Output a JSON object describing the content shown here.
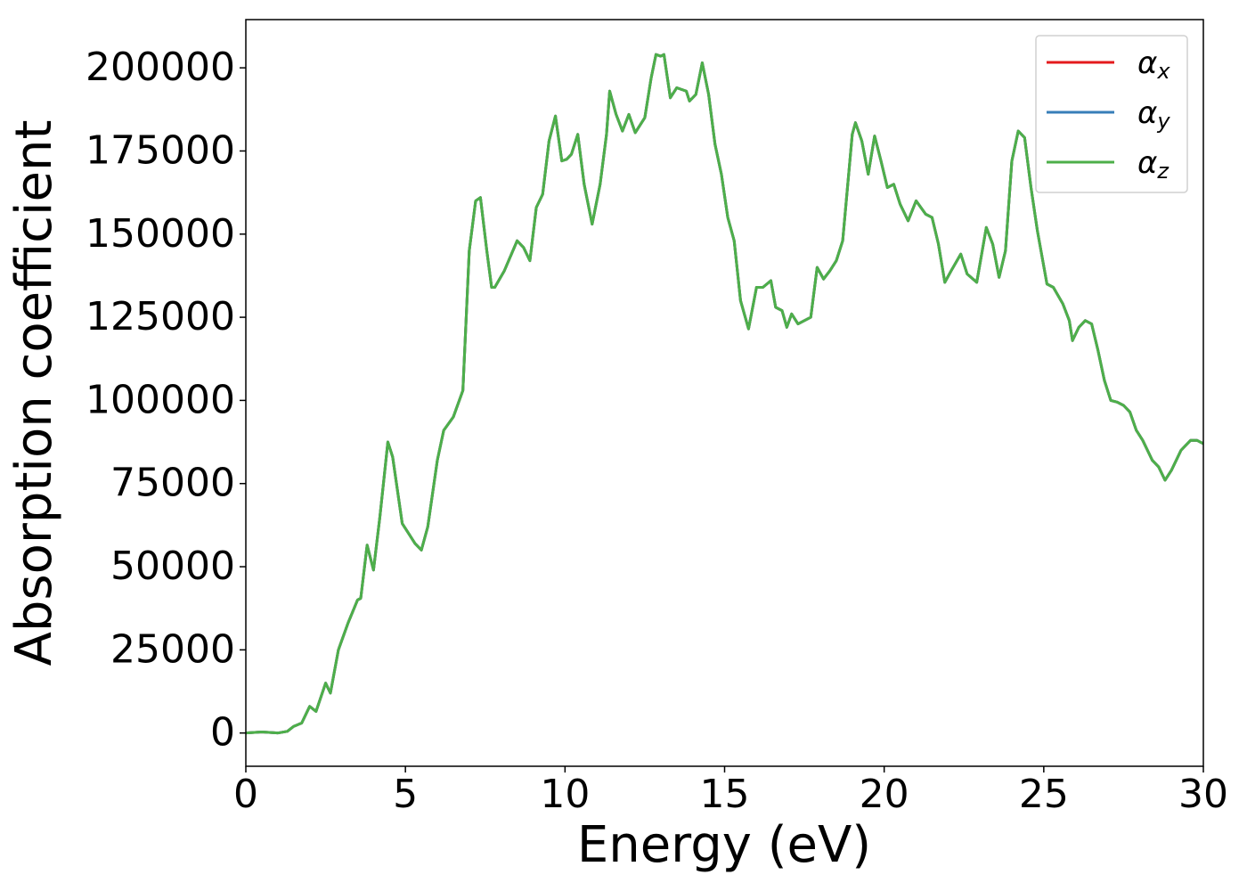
{
  "chart_data": {
    "type": "line",
    "xlabel": "Energy (eV)",
    "ylabel": "Absorption coefficient",
    "x": [
      0,
      0.5,
      1,
      1.3,
      1.5,
      1.75,
      2.0,
      2.2,
      2.5,
      2.65,
      2.9,
      3.2,
      3.5,
      3.6,
      3.8,
      4.0,
      4.2,
      4.45,
      4.6,
      4.9,
      5.1,
      5.3,
      5.5,
      5.7,
      6.0,
      6.2,
      6.5,
      6.8,
      7.0,
      7.2,
      7.35,
      7.55,
      7.7,
      7.8,
      8.1,
      8.5,
      8.7,
      8.9,
      9.1,
      9.3,
      9.5,
      9.7,
      9.9,
      10.05,
      10.2,
      10.4,
      10.6,
      10.85,
      11.1,
      11.3,
      11.4,
      11.6,
      11.8,
      12.0,
      12.2,
      12.5,
      12.7,
      12.85,
      13.0,
      13.1,
      13.3,
      13.5,
      13.8,
      13.9,
      14.1,
      14.3,
      14.5,
      14.7,
      14.9,
      15.1,
      15.3,
      15.5,
      15.75,
      16.0,
      16.2,
      16.45,
      16.6,
      16.8,
      16.95,
      17.1,
      17.3,
      17.5,
      17.7,
      17.9,
      18.1,
      18.3,
      18.5,
      18.7,
      19.0,
      19.1,
      19.3,
      19.5,
      19.7,
      19.9,
      20.1,
      20.3,
      20.5,
      20.75,
      21.0,
      21.3,
      21.5,
      21.7,
      21.9,
      22.1,
      22.4,
      22.6,
      22.9,
      23.2,
      23.4,
      23.6,
      23.8,
      24.0,
      24.2,
      24.4,
      24.6,
      24.8,
      25.1,
      25.3,
      25.6,
      25.8,
      25.9,
      26.1,
      26.3,
      26.5,
      26.7,
      26.9,
      27.1,
      27.3,
      27.5,
      27.7,
      27.9,
      28.1,
      28.4,
      28.6,
      28.8,
      29.0,
      29.3,
      29.6,
      29.8,
      30.0
    ],
    "series": [
      {
        "name": "αx",
        "color": "#e41a1c",
        "values": [
          0,
          300,
          0,
          500,
          2000,
          3000,
          8000,
          6500,
          15000,
          12000,
          25000,
          33000,
          40000,
          40500,
          56500,
          49000,
          65000,
          87500,
          83000,
          63000,
          60000,
          57000,
          55000,
          62000,
          82000,
          91000,
          95000,
          103000,
          145000,
          160000,
          161000,
          145000,
          134000,
          134000,
          139000,
          148000,
          146000,
          142000,
          158000,
          162000,
          178000,
          185500,
          172000,
          172500,
          174000,
          180000,
          165000,
          153000,
          165000,
          180000,
          193000,
          186000,
          181000,
          186000,
          180500,
          185000,
          197000,
          204000,
          203500,
          204000,
          191000,
          194000,
          193000,
          190000,
          192000,
          201500,
          192000,
          177000,
          168000,
          155000,
          148000,
          130000,
          121500,
          134000,
          134000,
          136000,
          128000,
          127000,
          122000,
          126000,
          123000,
          124000,
          125000,
          140000,
          136500,
          139000,
          142000,
          148000,
          180000,
          183500,
          178000,
          168000,
          179500,
          172000,
          164000,
          165000,
          159000,
          154000,
          160000,
          156000,
          155000,
          147000,
          135500,
          139000,
          144000,
          138000,
          135500,
          152000,
          147000,
          137000,
          145000,
          172000,
          181000,
          179000,
          164000,
          151000,
          135000,
          134000,
          129000,
          124000,
          118000,
          122000,
          124000,
          123000,
          115000,
          106000,
          100000,
          99500,
          98500,
          96500,
          91000,
          88000,
          82000,
          80000,
          76000,
          79000,
          85000,
          88000,
          88000,
          87000
        ]
      },
      {
        "name": "αy",
        "color": "#377eb8",
        "values": [
          0,
          300,
          0,
          500,
          2000,
          3000,
          8000,
          6500,
          15000,
          12000,
          25000,
          33000,
          40000,
          40500,
          56500,
          49000,
          65000,
          87500,
          83000,
          63000,
          60000,
          57000,
          55000,
          62000,
          82000,
          91000,
          95000,
          103000,
          145000,
          160000,
          161000,
          145000,
          134000,
          134000,
          139000,
          148000,
          146000,
          142000,
          158000,
          162000,
          178000,
          185500,
          172000,
          172500,
          174000,
          180000,
          165000,
          153000,
          165000,
          180000,
          193000,
          186000,
          181000,
          186000,
          180500,
          185000,
          197000,
          204000,
          203500,
          204000,
          191000,
          194000,
          193000,
          190000,
          192000,
          201500,
          192000,
          177000,
          168000,
          155000,
          148000,
          130000,
          121500,
          134000,
          134000,
          136000,
          128000,
          127000,
          122000,
          126000,
          123000,
          124000,
          125000,
          140000,
          136500,
          139000,
          142000,
          148000,
          180000,
          183500,
          178000,
          168000,
          179500,
          172000,
          164000,
          165000,
          159000,
          154000,
          160000,
          156000,
          155000,
          147000,
          135500,
          139000,
          144000,
          138000,
          135500,
          152000,
          147000,
          137000,
          145000,
          172000,
          181000,
          179000,
          164000,
          151000,
          135000,
          134000,
          129000,
          124000,
          118000,
          122000,
          124000,
          123000,
          115000,
          106000,
          100000,
          99500,
          98500,
          96500,
          91000,
          88000,
          82000,
          80000,
          76000,
          79000,
          85000,
          88000,
          88000,
          87000
        ]
      },
      {
        "name": "αz",
        "color": "#4daf4a",
        "values": [
          0,
          300,
          0,
          500,
          2000,
          3000,
          8000,
          6500,
          15000,
          12000,
          25000,
          33000,
          40000,
          40500,
          56500,
          49000,
          65000,
          87500,
          83000,
          63000,
          60000,
          57000,
          55000,
          62000,
          82000,
          91000,
          95000,
          103000,
          145000,
          160000,
          161000,
          145000,
          134000,
          134000,
          139000,
          148000,
          146000,
          142000,
          158000,
          162000,
          178000,
          185500,
          172000,
          172500,
          174000,
          180000,
          165000,
          153000,
          165000,
          180000,
          193000,
          186000,
          181000,
          186000,
          180500,
          185000,
          197000,
          204000,
          203500,
          204000,
          191000,
          194000,
          193000,
          190000,
          192000,
          201500,
          192000,
          177000,
          168000,
          155000,
          148000,
          130000,
          121500,
          134000,
          134000,
          136000,
          128000,
          127000,
          122000,
          126000,
          123000,
          124000,
          125000,
          140000,
          136500,
          139000,
          142000,
          148000,
          180000,
          183500,
          178000,
          168000,
          179500,
          172000,
          164000,
          165000,
          159000,
          154000,
          160000,
          156000,
          155000,
          147000,
          135500,
          139000,
          144000,
          138000,
          135500,
          152000,
          147000,
          137000,
          145000,
          172000,
          181000,
          179000,
          164000,
          151000,
          135000,
          134000,
          129000,
          124000,
          118000,
          122000,
          124000,
          123000,
          115000,
          106000,
          100000,
          99500,
          98500,
          96500,
          91000,
          88000,
          82000,
          80000,
          76000,
          79000,
          85000,
          88000,
          88000,
          87000
        ]
      }
    ],
    "xlim": [
      0,
      30
    ],
    "xticks": [
      0,
      5,
      10,
      15,
      20,
      25,
      30
    ],
    "ylim": [
      -10000,
      214500
    ],
    "yticks": [
      0,
      25000,
      50000,
      75000,
      100000,
      125000,
      150000,
      175000,
      200000
    ],
    "grid": false,
    "legend": "upper right"
  }
}
